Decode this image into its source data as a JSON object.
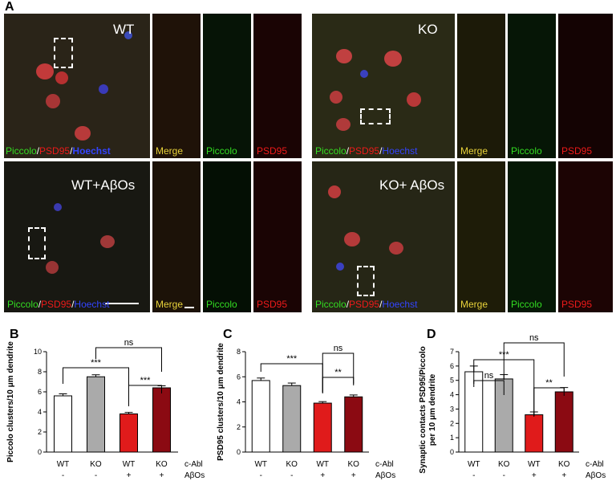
{
  "figure": {
    "panel_a": "A",
    "panel_b": "B",
    "panel_c": "C",
    "panel_d": "D"
  },
  "micrographs": {
    "wt": "WT",
    "ko": "KO",
    "wt_abos": "WT+AβOs",
    "ko_abos": "KO+ AβOs",
    "merge": "Merge",
    "piccolo": "Piccolo",
    "psd95": "PSD95",
    "hoechst": "Hoechst",
    "slash": "/"
  },
  "colors": {
    "wt_bar": "#ffffff",
    "ko_bar": "#aaaaaa",
    "wt_abos_bar": "#e01b1b",
    "ko_abos_bar": "#8b0a12",
    "green_label": "#33dd22",
    "red_label": "#ee1a1a",
    "blue_label": "#3344ff",
    "yellow_label": "#e8d23a"
  },
  "chart_data": [
    {
      "type": "bar",
      "panel": "B",
      "categories": [
        "WT",
        "KO",
        "WT",
        "KO"
      ],
      "values": [
        5.6,
        7.5,
        3.8,
        6.4
      ],
      "errors": [
        0.2,
        0.2,
        0.15,
        0.2
      ],
      "ylabel": "Piccolo clusters/10 μm dendrite",
      "ylim": [
        0,
        10
      ],
      "yticks": [
        "0",
        "2",
        "4",
        "6",
        "8",
        "10"
      ],
      "row_labels": [
        "c-Abl",
        "AβOs"
      ],
      "abos_row": [
        "-",
        "-",
        "+",
        "+"
      ],
      "significance": [
        "***",
        "***",
        "ns"
      ]
    },
    {
      "type": "bar",
      "panel": "C",
      "categories": [
        "WT",
        "KO",
        "WT",
        "KO"
      ],
      "values": [
        5.7,
        5.3,
        3.9,
        4.4
      ],
      "errors": [
        0.2,
        0.2,
        0.12,
        0.15
      ],
      "ylabel": "PSD95 clusters/10 μm dendrite",
      "ylim": [
        0,
        8
      ],
      "yticks": [
        "0",
        "2",
        "4",
        "6",
        "8"
      ],
      "row_labels": [
        "c-Abl",
        "AβOs"
      ],
      "abos_row": [
        "-",
        "-",
        "+",
        "+"
      ],
      "significance": [
        "***",
        "**",
        "ns"
      ]
    },
    {
      "type": "bar",
      "panel": "D",
      "categories": [
        "WT",
        "KO",
        "WT",
        "KO"
      ],
      "values": [
        5.6,
        5.1,
        2.6,
        4.2
      ],
      "errors": [
        0.4,
        0.3,
        0.2,
        0.3
      ],
      "ylabel": "Synaptic contacts PSD95/Piccolo per 10 μm dendrite",
      "ylabel_line1": "Synaptic contacts PSD95/Piccolo",
      "ylabel_line2": "per 10 μm dendrite",
      "ylim": [
        0,
        7
      ],
      "yticks": [
        "0",
        "1",
        "2",
        "3",
        "4",
        "5",
        "6",
        "7"
      ],
      "row_labels": [
        "c-Abl",
        "AβOs"
      ],
      "abos_row": [
        "-",
        "-",
        "+",
        "+"
      ],
      "significance": [
        "ns",
        "***",
        "**",
        "ns"
      ]
    }
  ]
}
